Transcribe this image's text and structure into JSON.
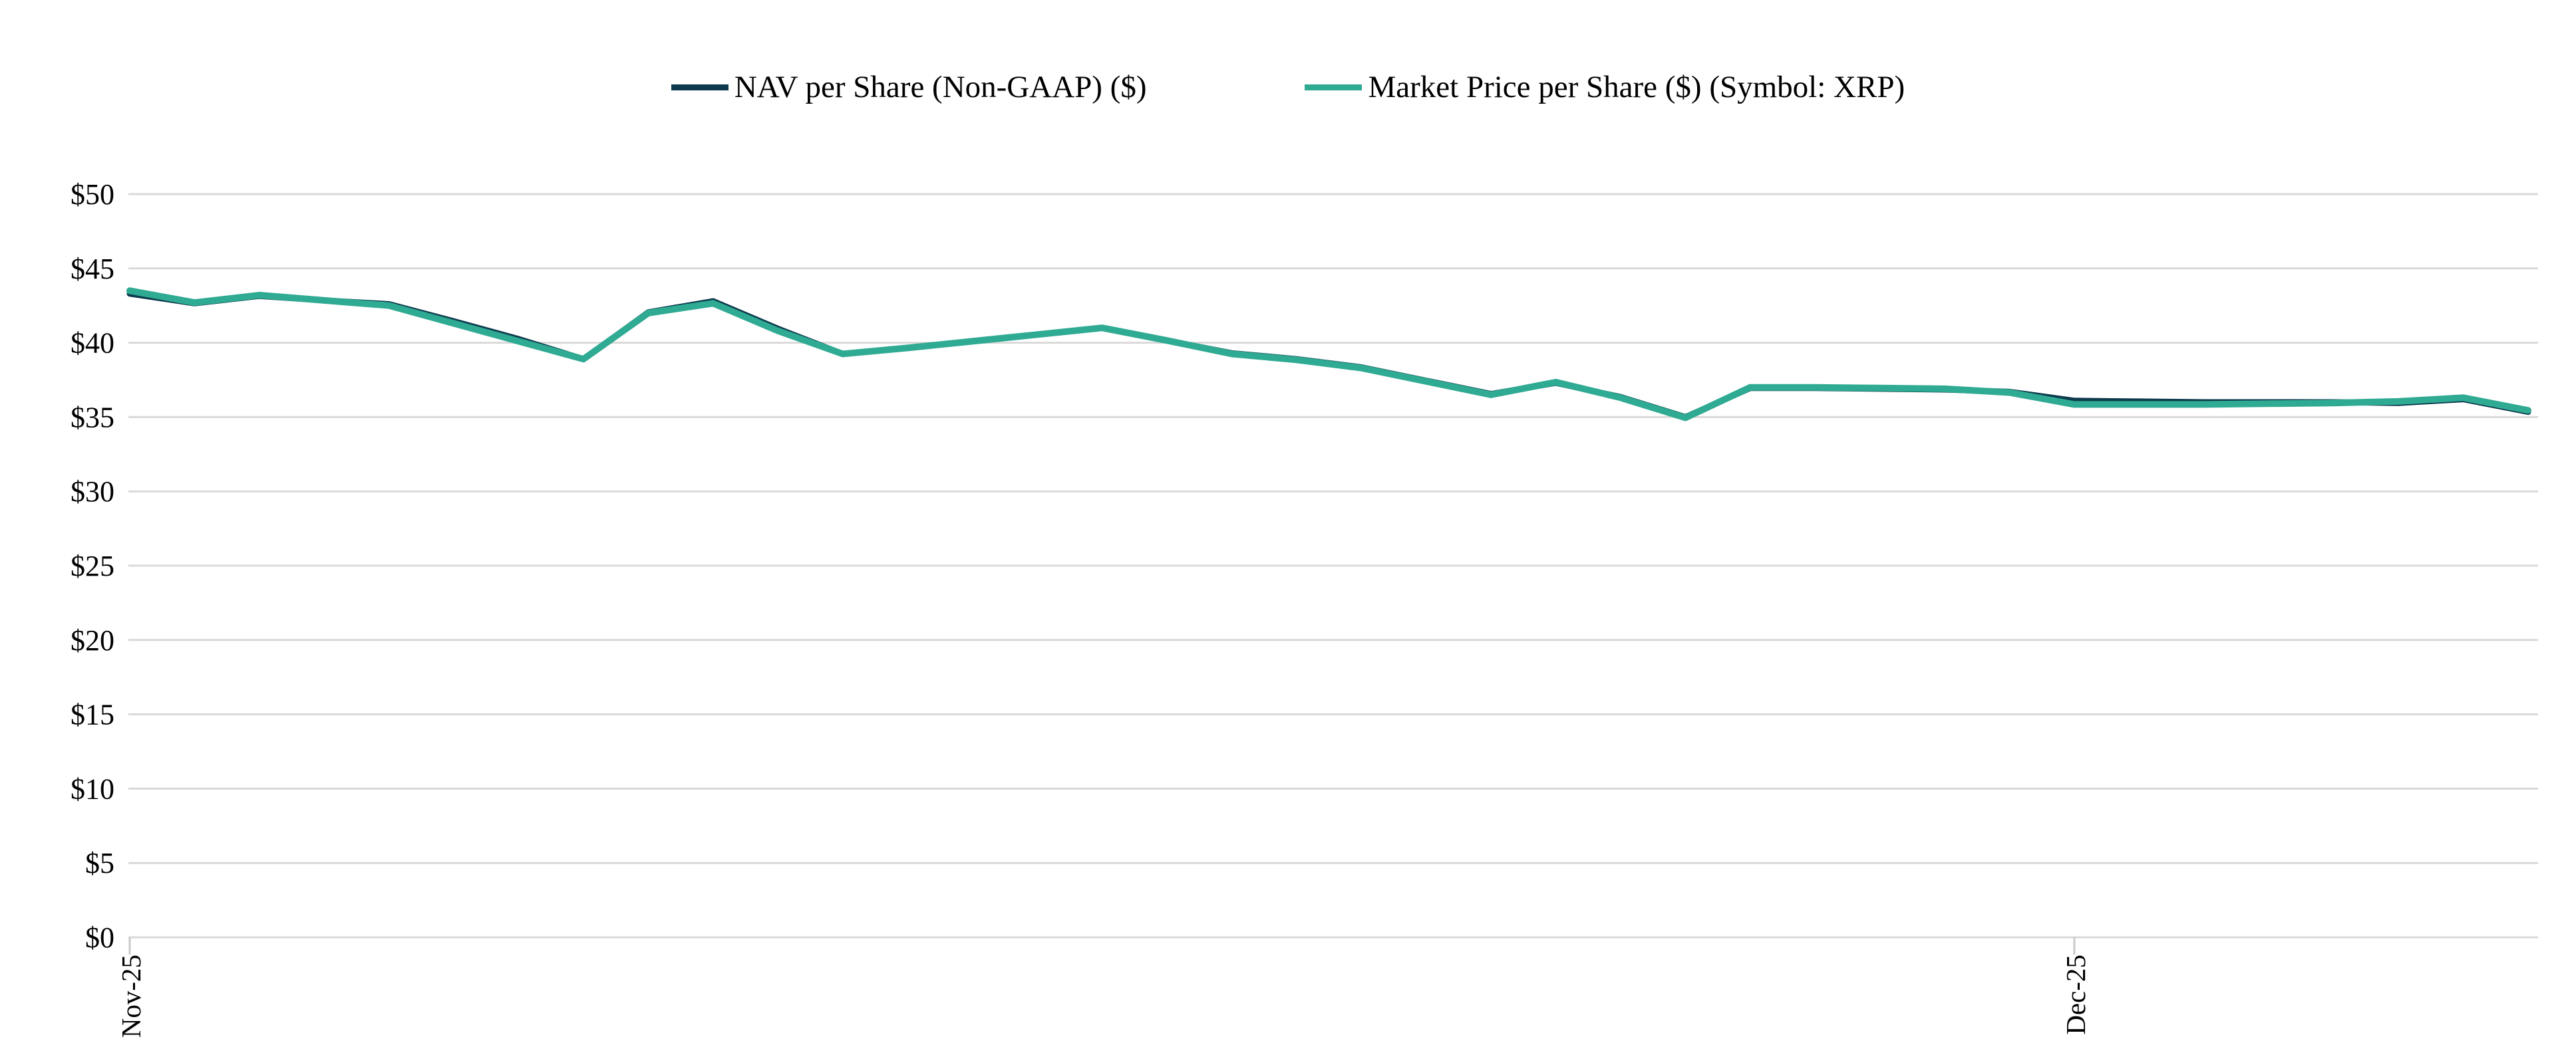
{
  "legend": {
    "items": [
      {
        "label": "NAV per Share (Non-GAAP) ($)",
        "color": "#0d3b4d"
      },
      {
        "label": "Market Price per Share ($) (Symbol: XRP)",
        "color": "#2faa93"
      }
    ]
  },
  "chart_data": {
    "type": "line",
    "title": "",
    "xlabel": "",
    "ylabel": "",
    "x": [
      "2025-11-01",
      "2025-11-02",
      "2025-11-03",
      "2025-11-04",
      "2025-11-05",
      "2025-11-06",
      "2025-11-07",
      "2025-11-08",
      "2025-11-09",
      "2025-11-10",
      "2025-11-11",
      "2025-11-12",
      "2025-11-13",
      "2025-11-14",
      "2025-11-15",
      "2025-11-16",
      "2025-11-17",
      "2025-11-18",
      "2025-11-19",
      "2025-11-20",
      "2025-11-21",
      "2025-11-22",
      "2025-11-23",
      "2025-11-24",
      "2025-11-25",
      "2025-11-26",
      "2025-11-27",
      "2025-11-28",
      "2025-11-29",
      "2025-11-30",
      "2025-12-01",
      "2025-12-02",
      "2025-12-03",
      "2025-12-04",
      "2025-12-05",
      "2025-12-06",
      "2025-12-07",
      "2025-12-08"
    ],
    "x_tick_labels": [
      {
        "index": 0,
        "label": "Nov-25"
      },
      {
        "index": 30,
        "label": "Dec-25"
      }
    ],
    "series": [
      {
        "name": "NAV per Share (Non-GAAP) ($)",
        "color": "#0d3b4d",
        "values": [
          43.3,
          42.65,
          43.15,
          42.85,
          42.6,
          41.45,
          40.25,
          38.9,
          42.05,
          42.8,
          40.95,
          39.25,
          39.65,
          40.1,
          40.55,
          41.0,
          40.15,
          39.3,
          38.9,
          38.35,
          37.45,
          36.55,
          37.3,
          36.35,
          35.0,
          36.95,
          36.95,
          36.9,
          36.85,
          36.7,
          36.1,
          36.05,
          36.0,
          36.0,
          36.0,
          35.95,
          36.2,
          35.35
        ]
      },
      {
        "name": "Market Price per Share ($) (Symbol: XRP)",
        "color": "#2faa93",
        "values": [
          43.5,
          42.7,
          43.2,
          42.85,
          42.5,
          41.3,
          40.1,
          38.9,
          42.0,
          42.65,
          40.8,
          39.25,
          39.65,
          40.1,
          40.55,
          41.0,
          40.15,
          39.25,
          38.85,
          38.3,
          37.4,
          36.5,
          37.35,
          36.3,
          34.95,
          37.0,
          37.0,
          36.95,
          36.9,
          36.65,
          35.85,
          35.85,
          35.85,
          35.9,
          35.95,
          36.05,
          36.3,
          35.45
        ]
      }
    ],
    "ylim": [
      0,
      50
    ],
    "y_step": 5,
    "y_tick_prefix": "$",
    "y_tick_labels": [
      "$0",
      "$5",
      "$10",
      "$15",
      "$20",
      "$25",
      "$30",
      "$35",
      "$40",
      "$45",
      "$50"
    ],
    "grid": "horizontal",
    "gridline_color": "#d9d9d9",
    "tick_color": "#c9c9c9",
    "legend_position": "top-center",
    "background": "#ffffff"
  }
}
